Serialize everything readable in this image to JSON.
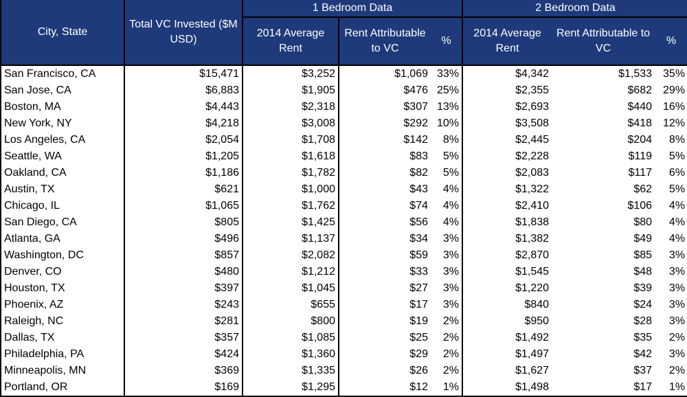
{
  "header": {
    "city": "City, State",
    "total_vc": "Total VC Invested ($M USD)",
    "group_1br": "1 Bedroom Data",
    "group_2br": "2 Bedroom Data",
    "br1": {
      "avg_rent": "2014 Average Rent",
      "rent_vc": "Rent Attributable to VC",
      "pct": "%"
    },
    "br2": {
      "avg_rent": "2014 Average Rent",
      "rent_vc": "Rent Attributable to VC",
      "pct": "%"
    }
  },
  "rows": [
    [
      "San Francisco, CA",
      "$15,471",
      "$3,252",
      "$1,069",
      "33%",
      "$4,342",
      "$1,533",
      "35%"
    ],
    [
      "San Jose, CA",
      "$6,883",
      "$1,905",
      "$476",
      "25%",
      "$2,355",
      "$682",
      "29%"
    ],
    [
      "Boston, MA",
      "$4,443",
      "$2,318",
      "$307",
      "13%",
      "$2,693",
      "$440",
      "16%"
    ],
    [
      "New York, NY",
      "$4,218",
      "$3,008",
      "$292",
      "10%",
      "$3,508",
      "$418",
      "12%"
    ],
    [
      "Los Angeles, CA",
      "$2,054",
      "$1,708",
      "$142",
      "8%",
      "$2,445",
      "$204",
      "8%"
    ],
    [
      "Seattle, WA",
      "$1,205",
      "$1,618",
      "$83",
      "5%",
      "$2,228",
      "$119",
      "5%"
    ],
    [
      "Oakland, CA",
      "$1,186",
      "$1,782",
      "$82",
      "5%",
      "$2,083",
      "$117",
      "6%"
    ],
    [
      "Austin, TX",
      "$621",
      "$1,000",
      "$43",
      "4%",
      "$1,322",
      "$62",
      "5%"
    ],
    [
      "Chicago, IL",
      "$1,065",
      "$1,762",
      "$74",
      "4%",
      "$2,410",
      "$106",
      "4%"
    ],
    [
      "San Diego, CA",
      "$805",
      "$1,425",
      "$56",
      "4%",
      "$1,838",
      "$80",
      "4%"
    ],
    [
      "Atlanta, GA",
      "$496",
      "$1,137",
      "$34",
      "3%",
      "$1,382",
      "$49",
      "4%"
    ],
    [
      "Washington, DC",
      "$857",
      "$2,082",
      "$59",
      "3%",
      "$2,870",
      "$85",
      "3%"
    ],
    [
      "Denver, CO",
      "$480",
      "$1,212",
      "$33",
      "3%",
      "$1,545",
      "$48",
      "3%"
    ],
    [
      "Houston, TX",
      "$397",
      "$1,045",
      "$27",
      "3%",
      "$1,220",
      "$39",
      "3%"
    ],
    [
      "Phoenix, AZ",
      "$243",
      "$655",
      "$17",
      "3%",
      "$840",
      "$24",
      "3%"
    ],
    [
      "Raleigh, NC",
      "$281",
      "$800",
      "$19",
      "2%",
      "$950",
      "$28",
      "3%"
    ],
    [
      "Dallas, TX",
      "$357",
      "$1,085",
      "$25",
      "2%",
      "$1,492",
      "$35",
      "2%"
    ],
    [
      "Philadelphia, PA",
      "$424",
      "$1,360",
      "$29",
      "2%",
      "$1,497",
      "$42",
      "3%"
    ],
    [
      "Minneapolis, MN",
      "$369",
      "$1,335",
      "$26",
      "2%",
      "$1,627",
      "$37",
      "2%"
    ],
    [
      "Portland, OR",
      "$169",
      "$1,295",
      "$12",
      "1%",
      "$1,498",
      "$17",
      "1%"
    ]
  ],
  "colors": {
    "header_bg": "#1f3a7a",
    "header_text": "#ffffff"
  }
}
